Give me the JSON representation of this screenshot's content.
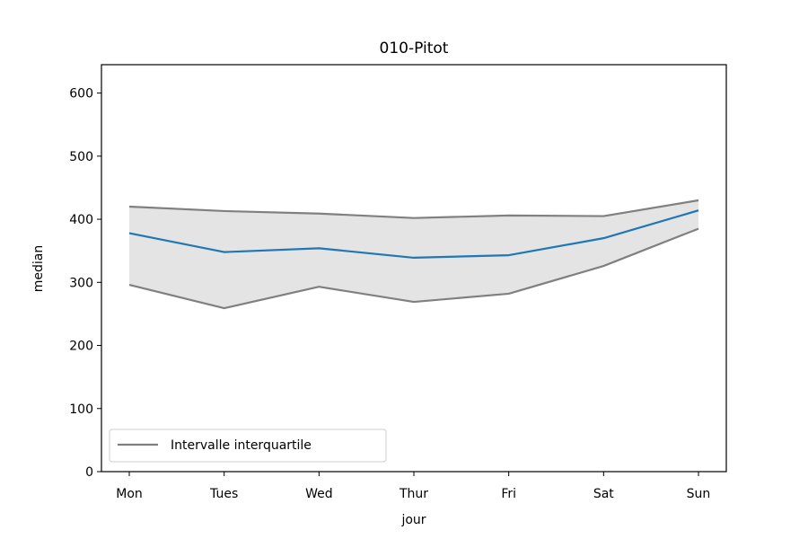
{
  "chart_data": {
    "type": "line",
    "title": "010-Pitot",
    "xlabel": "jour",
    "ylabel": "median",
    "categories": [
      "Mon",
      "Tues",
      "Wed",
      "Thur",
      "Fri",
      "Sat",
      "Sun"
    ],
    "ylim": [
      0,
      645
    ],
    "yticks": [
      0,
      100,
      200,
      300,
      400,
      500,
      600
    ],
    "grid": false,
    "legend_position": "lower-left",
    "series": [
      {
        "values": [
          378,
          348,
          354,
          339,
          343,
          370,
          414
        ],
        "color": "#1f77b4"
      },
      {
        "values": [
          420,
          413,
          409,
          402,
          406,
          405,
          430
        ],
        "color": "#808080"
      },
      {
        "values": [
          296,
          259,
          293,
          269,
          282,
          326,
          385
        ],
        "color": "#808080"
      }
    ],
    "band": {
      "fill": "#e4e4e4"
    },
    "legend": [
      {
        "label": "Intervalle interquartile",
        "color": "#808080"
      }
    ]
  }
}
